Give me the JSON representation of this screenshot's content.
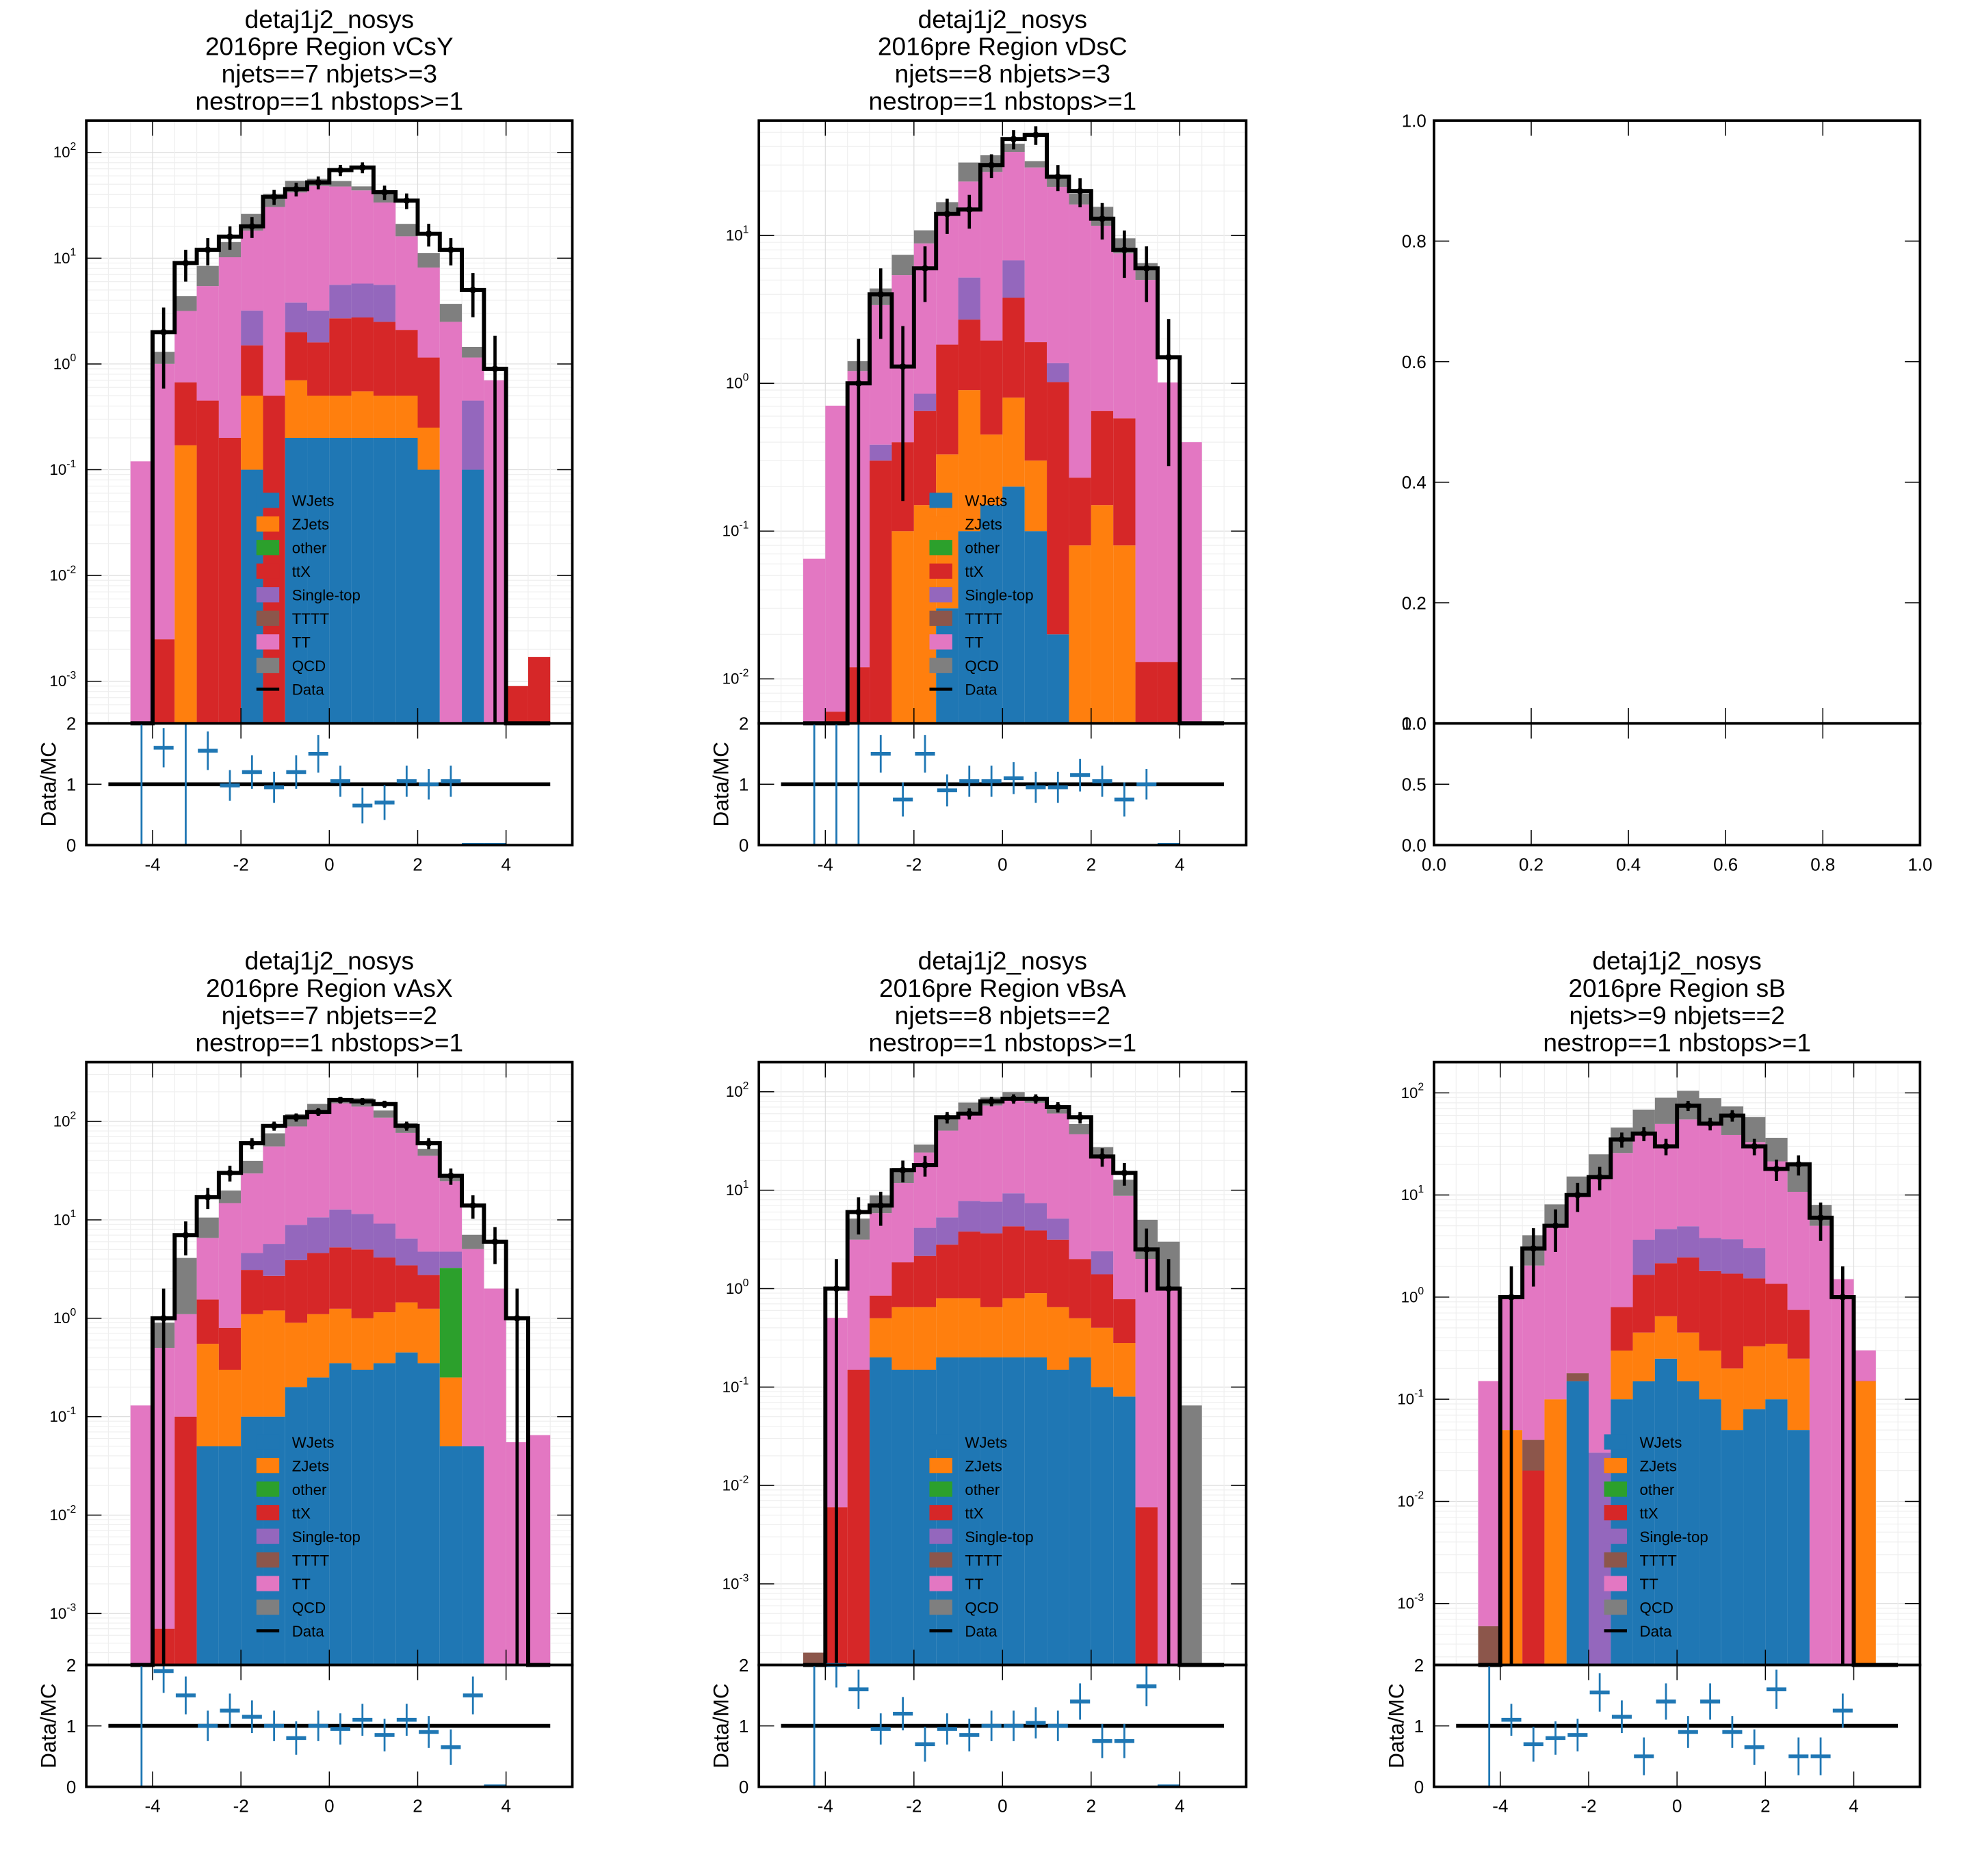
{
  "legend_labels": [
    "WJets",
    "ZJets",
    "other",
    "ttX",
    "Single-top",
    "TTTT",
    "TT",
    "QCD",
    "Data"
  ],
  "colors": {
    "WJets": "#1f77b4",
    "ZJets": "#ff7f0e",
    "other": "#2ca02c",
    "ttX": "#d62728",
    "Single-top": "#9467bd",
    "TTTT": "#8c564b",
    "TT": "#e377c2",
    "QCD": "#7f7f7f",
    "Data": "#000000",
    "ratio": "#1f77b4"
  },
  "ratio_ylabel": "Data/MC",
  "ratio_ylim": [
    0,
    2
  ],
  "ratio_yticks": [
    "0",
    "1",
    "2"
  ],
  "x_ticks": [
    "-4",
    "-2",
    "0",
    "2",
    "4"
  ],
  "xlim": [
    -5.5,
    5.5
  ],
  "bin_edges": [
    -4.5,
    -4,
    -3.5,
    -3,
    -2.5,
    -2,
    -1.5,
    -1,
    -0.5,
    0,
    0.5,
    1,
    1.5,
    2,
    2.5,
    3,
    3.5,
    4,
    4.5,
    5
  ],
  "empty_panel": {
    "main_ticks": [
      "0.0",
      "0.2",
      "0.4",
      "0.6",
      "0.8",
      "1.0"
    ],
    "ratio_ticks": [
      "0.0",
      "0.5",
      "1.0"
    ],
    "x_ticks": [
      "0.0",
      "0.2",
      "0.4",
      "0.6",
      "0.8",
      "1.0"
    ]
  },
  "chart_data": [
    {
      "type": "bar",
      "title": [
        "detaj1j2_nosys",
        "2016pre Region vCsY",
        "njets==7 nbjets>=3",
        "nestrop==1 nbstops>=1"
      ],
      "ylog": true,
      "ylim": [
        0.0004,
        200
      ],
      "ytick_exps": [
        -3,
        -2,
        -1,
        0,
        1,
        2
      ],
      "stack": {
        "WJets": [
          0,
          0,
          0,
          0,
          0,
          0.1,
          0,
          0.2,
          0.2,
          0.2,
          0.2,
          0.2,
          0.2,
          0.1,
          0,
          0.1,
          0,
          0,
          0
        ],
        "ZJets": [
          0,
          0,
          0.17,
          0,
          0,
          0.4,
          0,
          0.5,
          0.3,
          0.3,
          0.35,
          0.3,
          0.3,
          0.15,
          0,
          0,
          0,
          0,
          0
        ],
        "ttX": [
          0,
          0.0025,
          0.5,
          0.45,
          0.2,
          1.0,
          0.5,
          1.3,
          1.1,
          2.2,
          2.2,
          2.0,
          1.6,
          0.9,
          0,
          0,
          0,
          0.0009,
          0.0017
        ],
        "Single-top": [
          0,
          0,
          0,
          0,
          0,
          1.7,
          0,
          1.8,
          1.6,
          2.9,
          3.0,
          3.1,
          0,
          0,
          0,
          0.35,
          0,
          0,
          0
        ],
        "TTTT": [
          0,
          0,
          0,
          0,
          0,
          0,
          0,
          0,
          0,
          0,
          0,
          0,
          0,
          0,
          0,
          0,
          0,
          0,
          0
        ],
        "TT": [
          0.12,
          1.0,
          2.5,
          5.0,
          10,
          15,
          30,
          38,
          45,
          42,
          38,
          28,
          14,
          7.0,
          2.5,
          0.7,
          0.7,
          0,
          0
        ],
        "QCD": [
          0,
          0.3,
          1.2,
          3.0,
          4,
          8,
          10,
          12,
          8,
          6,
          4,
          8,
          5,
          3.0,
          1.2,
          0.3,
          0,
          0,
          0
        ]
      },
      "data_values": [
        0,
        2,
        9,
        12,
        16,
        20,
        38,
        45,
        52,
        68,
        72,
        42,
        35,
        17,
        12,
        5,
        0.9,
        0,
        0
      ],
      "ratio": [
        null,
        1.6,
        null,
        1.55,
        0.98,
        1.2,
        0.95,
        1.2,
        1.5,
        1.05,
        0.65,
        0.7,
        1.05,
        1.0,
        1.05,
        0,
        0
      ],
      "legend_location": "center"
    },
    {
      "type": "bar",
      "title": [
        "detaj1j2_nosys",
        "2016pre Region vDsC",
        "njets==8 nbjets>=3",
        "nestrop==1 nbstops>=1"
      ],
      "ylog": true,
      "ylim": [
        0.005,
        60
      ],
      "ytick_exps": [
        -2,
        -1,
        0,
        1
      ],
      "stack": {
        "WJets": [
          0,
          0,
          0,
          0,
          0,
          0,
          0.03,
          0.1,
          0.15,
          0.2,
          0.1,
          0.02,
          0,
          0,
          0,
          0,
          0,
          0,
          0
        ],
        "ZJets": [
          0,
          0,
          0,
          0,
          0.1,
          0.15,
          0.3,
          0.8,
          0.3,
          0.6,
          0.2,
          0,
          0.08,
          0.15,
          0.08,
          0,
          0,
          0,
          0
        ],
        "ttX": [
          0,
          0.006,
          0.012,
          0.3,
          0.3,
          0.5,
          1.5,
          1.8,
          1.5,
          3.0,
          1.6,
          1.0,
          0.15,
          0.5,
          0.5,
          0.013,
          0.013,
          0,
          0
        ],
        "Single-top": [
          0,
          0,
          0,
          0.085,
          0,
          0.2,
          0,
          2.5,
          0,
          3.0,
          0,
          0.35,
          0,
          0,
          0,
          0,
          0,
          0,
          0
        ],
        "TTTT": [
          0,
          0,
          0,
          0,
          0,
          0,
          0,
          0,
          0,
          0,
          0,
          0,
          0,
          0,
          0,
          0,
          0,
          0,
          0
        ],
        "TT": [
          0.065,
          0.7,
          1.2,
          3.0,
          5.0,
          8.0,
          12,
          18,
          25,
          30,
          27,
          20,
          16,
          11,
          7.0,
          5.0,
          1.0,
          0.4,
          0
        ],
        "QCD": [
          0,
          0,
          0.2,
          1.0,
          2.0,
          2.0,
          3.0,
          8.0,
          8.0,
          5.0,
          3.0,
          3.5,
          3.0,
          4.0,
          2.0,
          1.5,
          0,
          0,
          0
        ],
        "other": [
          0,
          0,
          0,
          0,
          0,
          0,
          0,
          0,
          0,
          0,
          0,
          0,
          0,
          0,
          0,
          0,
          0,
          0,
          0
        ]
      },
      "data_values": [
        0,
        0,
        1.0,
        4.0,
        1.3,
        6,
        14,
        15,
        30,
        45,
        48,
        25,
        20,
        13,
        8,
        6,
        1.5,
        0,
        0
      ],
      "ratio": [
        null,
        null,
        null,
        1.5,
        0.75,
        1.5,
        0.9,
        1.05,
        1.05,
        1.1,
        0.95,
        0.95,
        1.15,
        1.05,
        0.75,
        1.0,
        0
      ],
      "legend_location": "center"
    },
    {
      "type": "bar",
      "title": [
        "detaj1j2_nosys",
        "2016pre Region vAsX",
        "njets==7 nbjets==2",
        "nestrop==1 nbstops>=1"
      ],
      "ylog": true,
      "ylim": [
        0.0003,
        400
      ],
      "ytick_exps": [
        -3,
        -2,
        -1,
        0,
        1,
        2
      ],
      "stack": {
        "WJets": [
          0,
          0,
          0,
          0.05,
          0.05,
          0.1,
          0.1,
          0.2,
          0.25,
          0.35,
          0.3,
          0.35,
          0.45,
          0.35,
          0.05,
          0.05,
          0,
          0,
          0
        ],
        "ZJets": [
          0,
          0,
          0,
          0.5,
          0.25,
          1.0,
          1.1,
          0.7,
          0.85,
          0.9,
          0.7,
          0.8,
          1.0,
          0.9,
          0.2,
          0,
          0,
          0,
          0
        ],
        "other": [
          0,
          0,
          0,
          0,
          0,
          0,
          0,
          0,
          0,
          0,
          0,
          0,
          0,
          0,
          3.0,
          0,
          0,
          0,
          0
        ],
        "ttX": [
          0,
          0.0007,
          0.1,
          1.0,
          0.5,
          2.0,
          1.5,
          3.0,
          3.5,
          4.0,
          4.0,
          3.0,
          2.0,
          1.5,
          0,
          0,
          0,
          0,
          0
        ],
        "Single-top": [
          0,
          0,
          0,
          0,
          0,
          1.5,
          3.0,
          5.0,
          6.0,
          7.5,
          6.5,
          5.0,
          3.0,
          2.0,
          1.5,
          0,
          0,
          0,
          0
        ],
        "TTTT": [
          0,
          0,
          0,
          0,
          0,
          0,
          0,
          0,
          0,
          0,
          0,
          0,
          0,
          0,
          0,
          0,
          0,
          0,
          0
        ],
        "TT": [
          0.13,
          0.5,
          1.0,
          5.0,
          14,
          25,
          50,
          80,
          110,
          140,
          130,
          100,
          70,
          40,
          20,
          5.0,
          2.0,
          0.055,
          0.065
        ],
        "QCD": [
          0,
          0.4,
          3.0,
          4.0,
          5.0,
          10,
          20,
          30,
          30,
          20,
          30,
          20,
          20,
          8,
          4,
          2,
          0,
          0,
          0
        ]
      },
      "data_values": [
        0,
        1.0,
        7,
        17,
        30,
        60,
        90,
        110,
        125,
        165,
        160,
        150,
        90,
        60,
        28,
        14,
        6,
        1,
        0
      ],
      "ratio": [
        null,
        1.9,
        1.5,
        1.0,
        1.25,
        1.15,
        1.0,
        0.8,
        1.0,
        0.95,
        1.1,
        0.85,
        1.1,
        0.9,
        0.65,
        1.5,
        0
      ],
      "legend_location": "center"
    },
    {
      "type": "bar",
      "title": [
        "detaj1j2_nosys",
        "2016pre Region vBsA",
        "njets==8 nbjets==2",
        "nestrop==1 nbstops>=1"
      ],
      "ylog": true,
      "ylim": [
        0.00015,
        200
      ],
      "ytick_exps": [
        -3,
        -2,
        -1,
        0,
        1,
        2
      ],
      "stack": {
        "WJets": [
          0,
          0,
          0,
          0.2,
          0.15,
          0.15,
          0.2,
          0.2,
          0.2,
          0.2,
          0.2,
          0.15,
          0.2,
          0.1,
          0.08,
          0,
          0,
          0,
          0
        ],
        "ZJets": [
          0,
          0,
          0,
          0.3,
          0.5,
          0.5,
          0.6,
          0.6,
          0.45,
          0.6,
          0.7,
          0.5,
          0.3,
          0.3,
          0.2,
          0,
          0,
          0,
          0
        ],
        "ttX": [
          0,
          0.006,
          0.15,
          0.35,
          1.2,
          1.5,
          2.0,
          3.0,
          3.0,
          3.5,
          3.0,
          2.5,
          1.5,
          1.0,
          0.5,
          0.006,
          0,
          0,
          0
        ],
        "Single-top": [
          0,
          0,
          0,
          0,
          0,
          2.0,
          2.5,
          4.0,
          4.0,
          5.0,
          3.5,
          2.0,
          0,
          1.0,
          0,
          0,
          0,
          0,
          0
        ],
        "TTTT": [
          0.0002,
          0,
          0,
          0,
          0,
          0,
          0,
          0,
          0,
          0,
          0,
          0,
          0,
          0,
          0,
          0,
          0,
          0,
          0
        ],
        "TT": [
          0,
          0.5,
          3.0,
          5.0,
          10,
          20,
          35,
          55,
          65,
          75,
          70,
          55,
          35,
          20,
          8.0,
          2.0,
          1.0,
          0,
          0
        ],
        "QCD": [
          0,
          0,
          2.0,
          3.0,
          5.0,
          5.0,
          15,
          15,
          15,
          15,
          10,
          10,
          10,
          5.0,
          4.0,
          3.0,
          2.0,
          0.065,
          0
        ],
        "other": [
          0,
          0,
          0,
          0,
          0,
          0,
          0,
          0,
          0,
          0,
          0,
          0,
          0,
          0,
          0,
          0,
          0,
          0,
          0
        ]
      },
      "data_values": [
        0,
        1.0,
        6,
        7,
        16,
        18,
        55,
        60,
        80,
        85,
        85,
        70,
        55,
        22,
        15,
        2.5,
        1.0,
        0,
        0
      ],
      "ratio": [
        null,
        2.0,
        1.6,
        0.95,
        1.2,
        0.7,
        0.95,
        0.85,
        1.0,
        1.0,
        1.05,
        1.0,
        1.4,
        0.75,
        0.75,
        1.65,
        0
      ],
      "legend_location": "center"
    },
    {
      "type": "bar",
      "title": [
        "detaj1j2_nosys",
        "2016pre Region sB",
        "njets>=9 nbjets==2",
        "nestrop==1 nbstops>=1"
      ],
      "ylog": true,
      "ylim": [
        0.00025,
        200
      ],
      "ytick_exps": [
        -3,
        -2,
        -1,
        0,
        1,
        2
      ],
      "stack": {
        "WJets": [
          0,
          0,
          0,
          0,
          0.15,
          0,
          0.1,
          0.15,
          0.25,
          0.15,
          0.1,
          0.05,
          0.08,
          0.1,
          0.05,
          0,
          0,
          0,
          0
        ],
        "ZJets": [
          0,
          0.05,
          0,
          0.1,
          0,
          0,
          0.2,
          0.3,
          0.4,
          0.3,
          0.2,
          0.15,
          0.25,
          0.25,
          0.2,
          0,
          0,
          0.15,
          0
        ],
        "ttX": [
          0,
          0,
          0.02,
          0,
          0,
          0,
          0.5,
          1.2,
          1.5,
          2.0,
          1.5,
          1.5,
          1.2,
          1.0,
          0.5,
          0,
          0,
          0.0012,
          0
        ],
        "Single-top": [
          0,
          0,
          0,
          0,
          0,
          0.03,
          0,
          2.0,
          2.5,
          2.5,
          2.0,
          2.0,
          1.5,
          0,
          0,
          0,
          0,
          0,
          0
        ],
        "TTTT": [
          0.0006,
          0,
          0.02,
          0,
          0.03,
          0,
          0,
          0,
          0,
          0,
          0,
          0,
          0,
          0,
          0,
          0,
          0,
          0,
          0
        ],
        "TT": [
          0.15,
          1.0,
          2.0,
          5.0,
          10,
          15,
          25,
          35,
          45,
          50,
          45,
          35,
          30,
          20,
          10,
          5.0,
          1.5,
          0.15,
          0
        ],
        "QCD": [
          0,
          0,
          2.0,
          3.0,
          5.0,
          10,
          20,
          30,
          40,
          50,
          40,
          35,
          25,
          15,
          10,
          3.0,
          0,
          0,
          0
        ],
        "other": [
          0,
          0,
          0,
          0,
          0,
          0,
          0,
          0,
          0,
          0,
          0,
          0,
          0,
          0,
          0,
          0,
          0,
          0,
          0
        ]
      },
      "data_values": [
        0,
        1.0,
        3,
        5,
        10,
        15,
        35,
        40,
        30,
        75,
        50,
        60,
        30,
        18,
        20,
        6,
        1.0,
        0,
        0
      ],
      "ratio": [
        null,
        1.1,
        0.7,
        0.8,
        0.85,
        1.55,
        1.15,
        0.5,
        1.4,
        0.9,
        1.4,
        0.9,
        0.65,
        1.6,
        0.5,
        0.5,
        1.25
      ],
      "legend_location": "center"
    }
  ]
}
